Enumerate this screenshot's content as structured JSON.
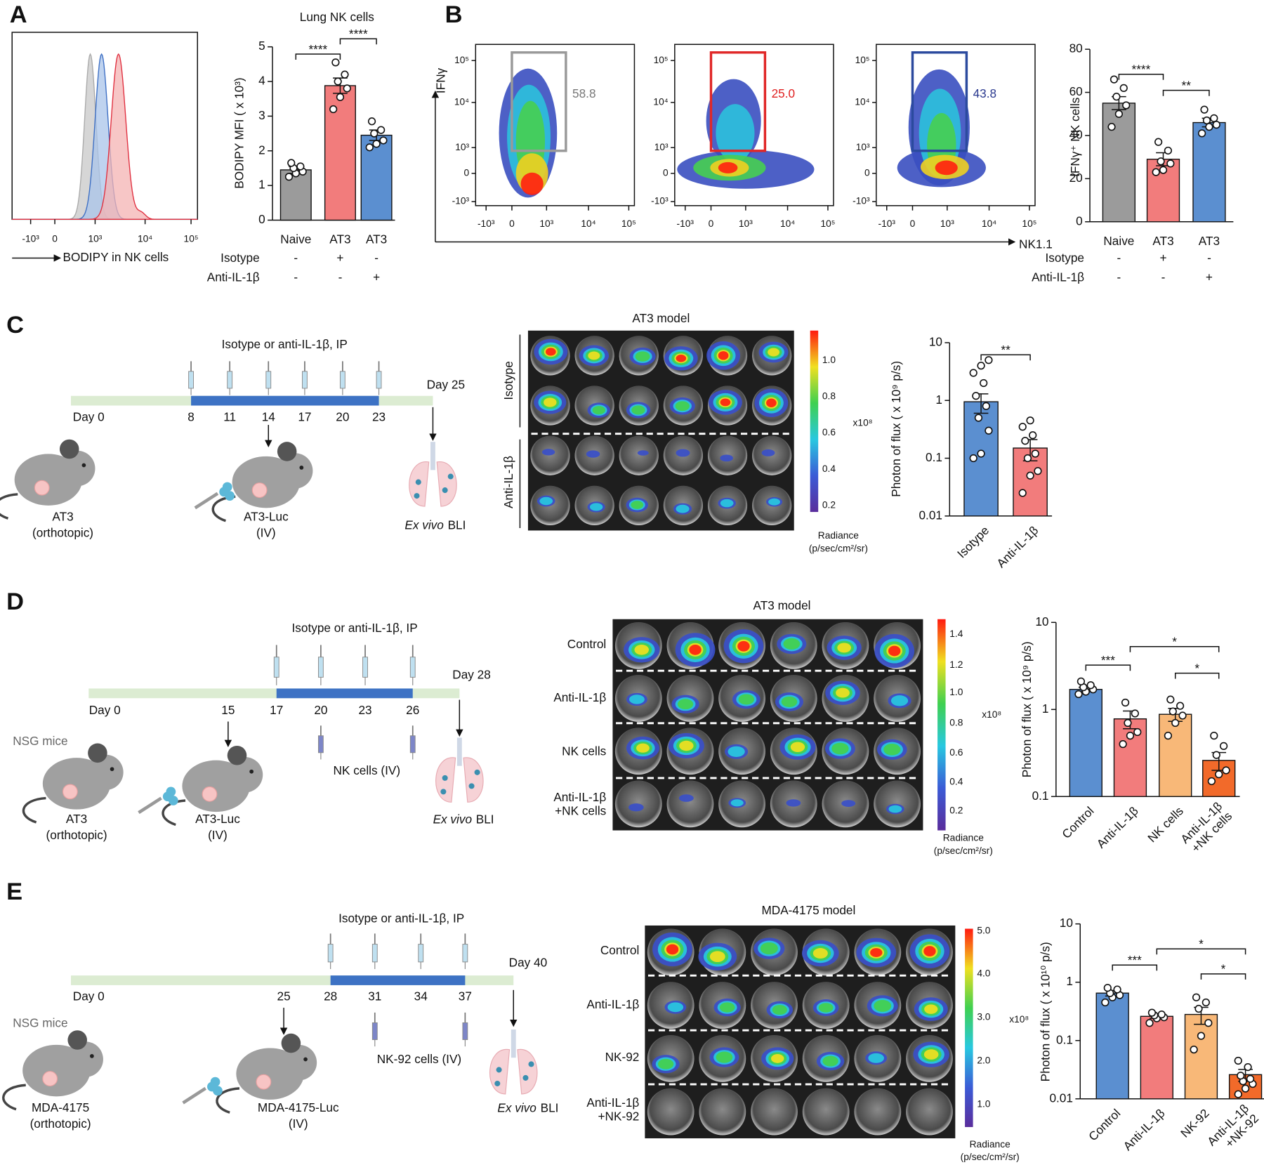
{
  "panel_letters": [
    "A",
    "B",
    "C",
    "D",
    "E"
  ],
  "histogram": {
    "xlabel": "BODIPY in NK cells",
    "xticks": [
      "-10³",
      "0",
      "10³",
      "10⁴",
      "10⁵"
    ]
  },
  "flow": {
    "ylabel": "IFNγ",
    "xlabel": "NK1.1",
    "xticks": [
      "-10³",
      "0",
      "10³",
      "10⁴",
      "10⁵"
    ],
    "yticks": [
      "10⁵",
      "10⁴",
      "10³",
      "0",
      "-10³"
    ],
    "gates": [
      "58.8",
      "25.0",
      "43.8"
    ]
  },
  "chart_data": [
    {
      "type": "bar",
      "title": "Lung NK cells",
      "ylabel": "BODIPY MFI ( x 10³)",
      "categories": [
        "Naive",
        "AT3",
        "AT3"
      ],
      "values": [
        1.45,
        3.88,
        2.45
      ],
      "errors": [
        0.1,
        0.22,
        0.15
      ],
      "points": [
        [
          1.25,
          1.35,
          1.4,
          1.5,
          1.55,
          1.65
        ],
        [
          3.2,
          3.55,
          3.8,
          4.0,
          4.2,
          4.55
        ],
        [
          2.1,
          2.2,
          2.3,
          2.5,
          2.6,
          2.85
        ]
      ],
      "colors": [
        "#9b9b9b",
        "#f27c7c",
        "#5b8fd0"
      ],
      "ylim": [
        0,
        5
      ],
      "yticks": [
        0,
        1,
        2,
        3,
        4,
        5
      ],
      "significance": [
        "****",
        "****"
      ],
      "conditions": [
        {
          "name": "Isotype",
          "values": [
            "-",
            "+",
            "-"
          ]
        },
        {
          "name": "Anti-IL-1β",
          "values": [
            "-",
            "-",
            "+"
          ]
        }
      ]
    },
    {
      "type": "bar",
      "ylabel": "IFNγ⁺ NK cells",
      "categories": [
        "Naive",
        "AT3",
        "AT3"
      ],
      "values": [
        55,
        29,
        46
      ],
      "errors": [
        3,
        3,
        2
      ],
      "points": [
        [
          44,
          50,
          54,
          58,
          62,
          66
        ],
        [
          23,
          24,
          27,
          28,
          33,
          37
        ],
        [
          41,
          44,
          45,
          47,
          48,
          52
        ]
      ],
      "colors": [
        "#9b9b9b",
        "#f27c7c",
        "#5b8fd0"
      ],
      "ylim": [
        0,
        80
      ],
      "yticks": [
        0,
        20,
        40,
        60,
        80
      ],
      "significance": [
        "****",
        "**"
      ],
      "conditions": [
        {
          "name": "Isotype",
          "values": [
            "-",
            "+",
            "-"
          ]
        },
        {
          "name": "Anti-IL-1β",
          "values": [
            "-",
            "-",
            "+"
          ]
        }
      ]
    },
    {
      "type": "bar",
      "yscale": "log",
      "ylabel": "Photon of flux ( x 10⁹ p/s)",
      "categories": [
        "Isotype",
        "Anti-IL-1β"
      ],
      "values": [
        0.95,
        0.15
      ],
      "errors": [
        0.35,
        0.06
      ],
      "points": [
        [
          0.1,
          0.12,
          0.3,
          0.5,
          0.8,
          1.2,
          2,
          3,
          4,
          5
        ],
        [
          0.025,
          0.05,
          0.06,
          0.1,
          0.12,
          0.2,
          0.25,
          0.35,
          0.45
        ]
      ],
      "colors": [
        "#5b8fd0",
        "#f27c7c"
      ],
      "ylim": [
        0.01,
        10
      ],
      "yticks": [
        0.01,
        0.1,
        1,
        10
      ],
      "significance": [
        "**"
      ]
    },
    {
      "type": "bar",
      "yscale": "log",
      "ylabel": "Photon of flux ( x 10⁹ p/s)",
      "categories": [
        "Control",
        "Anti-IL-1β",
        "NK cells",
        "Anti-IL-1β\n+NK cells"
      ],
      "values": [
        1.7,
        0.78,
        0.88,
        0.26
      ],
      "errors": [
        0.1,
        0.18,
        0.15,
        0.06
      ],
      "points": [
        [
          1.5,
          1.6,
          1.7,
          1.8,
          1.9,
          2.1
        ],
        [
          0.4,
          0.5,
          0.55,
          0.7,
          0.9,
          1.2
        ],
        [
          0.5,
          0.7,
          0.85,
          0.95,
          1.1,
          1.3
        ],
        [
          0.15,
          0.18,
          0.2,
          0.3,
          0.38,
          0.5
        ]
      ],
      "colors": [
        "#5b8fd0",
        "#f27c7c",
        "#f8b878",
        "#f26a2a"
      ],
      "ylim": [
        0.1,
        10
      ],
      "yticks": [
        0.1,
        1,
        10
      ],
      "significance": [
        "***",
        "*",
        "*"
      ]
    },
    {
      "type": "bar",
      "yscale": "log",
      "ylabel": "Photon of flux ( x 10¹⁰ p/s)",
      "categories": [
        "Control",
        "Anti-IL-1β",
        "NK-92",
        "Anti-IL-1β\n+NK-92"
      ],
      "values": [
        0.65,
        0.26,
        0.28,
        0.026
      ],
      "errors": [
        0.07,
        0.02,
        0.09,
        0.006
      ],
      "points": [
        [
          0.45,
          0.55,
          0.6,
          0.65,
          0.75,
          0.8
        ],
        [
          0.2,
          0.24,
          0.25,
          0.27,
          0.28,
          0.3
        ],
        [
          0.07,
          0.12,
          0.2,
          0.35,
          0.45,
          0.55
        ],
        [
          0.012,
          0.015,
          0.018,
          0.02,
          0.022,
          0.025,
          0.035,
          0.045
        ]
      ],
      "colors": [
        "#5b8fd0",
        "#f27c7c",
        "#f8b878",
        "#f26a2a"
      ],
      "ylim": [
        0.01,
        10
      ],
      "yticks": [
        0.01,
        0.1,
        1,
        10
      ],
      "significance": [
        "***",
        "*",
        "*"
      ]
    }
  ],
  "timelines": [
    {
      "title": "Isotype or anti-IL-1β, IP",
      "start": "Day 0",
      "days": [
        "8",
        "11",
        "14",
        "17",
        "20",
        "23"
      ],
      "end": "Day 25",
      "host": [
        "AT3",
        "(orthotopic)"
      ],
      "inject": [
        "AT3-Luc",
        "(IV)"
      ],
      "bli": [
        "Ex vivo",
        "BLI"
      ]
    },
    {
      "title": "Isotype or anti-IL-1β, IP",
      "start": "Day 0",
      "days": [
        "15",
        "17",
        "20",
        "23",
        "26"
      ],
      "end": "Day 28",
      "strain": "NSG  mice",
      "host": [
        "AT3",
        "(orthotopic)"
      ],
      "inject": [
        "AT3-Luc",
        "(IV)"
      ],
      "nk": "NK cells (IV)",
      "bli": [
        "Ex vivo",
        "BLI"
      ]
    },
    {
      "title": "Isotype or anti-IL-1β, IP",
      "start": "Day 0",
      "days": [
        "25",
        "28",
        "31",
        "34",
        "37"
      ],
      "end": "Day 40",
      "strain": "NSG  mice",
      "host": [
        "MDA-4175",
        "(orthotopic)"
      ],
      "inject": [
        "MDA-4175-Luc",
        "(IV)"
      ],
      "nk": "NK-92 cells (IV)",
      "bli": [
        "Ex vivo",
        "BLI"
      ]
    }
  ],
  "images": [
    {
      "title": "AT3 model",
      "rows": [
        "Isotype",
        "Anti-IL-1β"
      ],
      "colorbar": [
        "1.0",
        "0.8",
        "0.6",
        "0.4",
        "0.2"
      ],
      "multiplier": "x10⁸",
      "unit": [
        "Radiance",
        "(p/sec/cm²/sr)"
      ]
    },
    {
      "title": "AT3 model",
      "rows": [
        "Control",
        "Anti-IL-1β",
        "NK cells",
        "Anti-IL-1β\n+NK cells"
      ],
      "colorbar": [
        "1.4",
        "1.2",
        "1.0",
        "0.8",
        "0.6",
        "0.4",
        "0.2"
      ],
      "multiplier": "x10⁸",
      "unit": [
        "Radiance",
        "(p/sec/cm²/sr)"
      ]
    },
    {
      "title": "MDA-4175 model",
      "rows": [
        "Control",
        "Anti-IL-1β",
        "NK-92",
        "Anti-IL-1β\n+NK-92"
      ],
      "colorbar": [
        "5.0",
        "4.0",
        "3.0",
        "2.0",
        "1.0"
      ],
      "multiplier": "x10⁸",
      "unit": [
        "Radiance",
        "(p/sec/cm²/sr)"
      ]
    }
  ]
}
